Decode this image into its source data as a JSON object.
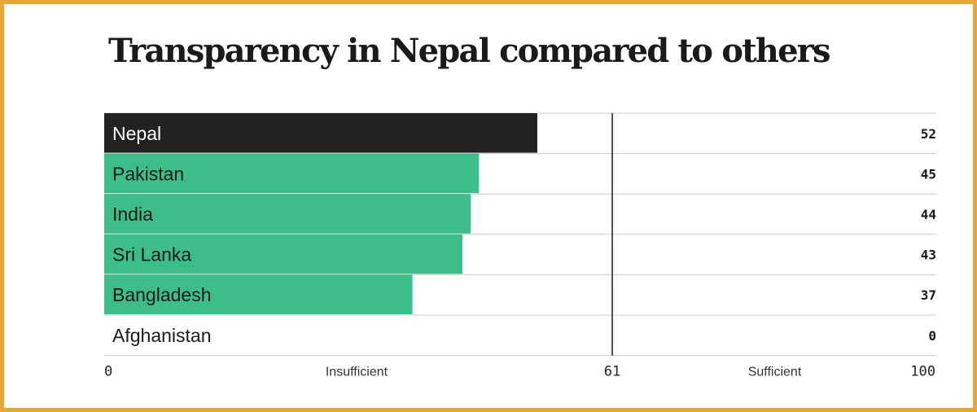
{
  "chart_data": {
    "type": "bar",
    "orientation": "horizontal",
    "title": "Transparency in Nepal compared to others",
    "categories": [
      "Nepal",
      "Pakistan",
      "India",
      "Sri Lanka",
      "Bangladesh",
      "Afghanistan"
    ],
    "values": [
      52,
      45,
      44,
      43,
      37,
      0
    ],
    "value_labels": [
      "52",
      "45",
      "44",
      "43",
      "37",
      "0"
    ],
    "highlight": "Nepal",
    "xlim": [
      0,
      100
    ],
    "threshold": {
      "value": 61,
      "label": "61"
    },
    "axis_labels": {
      "min": "0",
      "max": "100",
      "below_threshold": "Insufficient",
      "above_threshold": "Sufficient"
    },
    "colors": {
      "highlight_bar": "#222222",
      "bar": "#3dbd8a",
      "threshold_line": "#1a1a1a",
      "row_divider": "#cccccc",
      "frame": "#e8a838"
    }
  }
}
